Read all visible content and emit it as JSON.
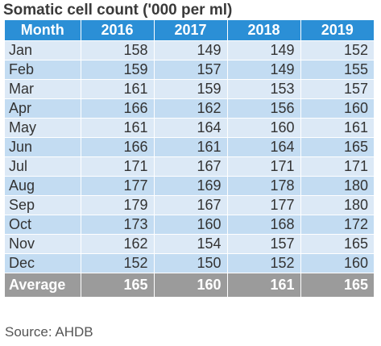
{
  "title": "Somatic cell count ('000 per ml)",
  "source": "Source: AHDB",
  "colors": {
    "header_bg": "#2b8fd6",
    "row_light": "#dce9f6",
    "row_dark": "#c3dcf2",
    "footer_bg": "#9b9b9b"
  },
  "chart_data": {
    "type": "table",
    "title": "Somatic cell count ('000 per ml)",
    "columns": [
      "Month",
      "2016",
      "2017",
      "2018",
      "2019"
    ],
    "rows": [
      {
        "month": "Jan",
        "values": [
          158,
          149,
          149,
          152
        ]
      },
      {
        "month": "Feb",
        "values": [
          159,
          157,
          149,
          155
        ]
      },
      {
        "month": "Mar",
        "values": [
          161,
          159,
          153,
          157
        ]
      },
      {
        "month": "Apr",
        "values": [
          166,
          162,
          156,
          160
        ]
      },
      {
        "month": "May",
        "values": [
          161,
          164,
          160,
          161
        ]
      },
      {
        "month": "Jun",
        "values": [
          166,
          161,
          164,
          165
        ]
      },
      {
        "month": "Jul",
        "values": [
          171,
          167,
          171,
          171
        ]
      },
      {
        "month": "Aug",
        "values": [
          177,
          169,
          178,
          180
        ]
      },
      {
        "month": "Sep",
        "values": [
          179,
          167,
          177,
          180
        ]
      },
      {
        "month": "Oct",
        "values": [
          173,
          160,
          168,
          172
        ]
      },
      {
        "month": "Nov",
        "values": [
          162,
          154,
          157,
          165
        ]
      },
      {
        "month": "Dec",
        "values": [
          152,
          150,
          152,
          160
        ]
      }
    ],
    "footer": {
      "label": "Average",
      "values": [
        165,
        160,
        161,
        165
      ]
    }
  }
}
